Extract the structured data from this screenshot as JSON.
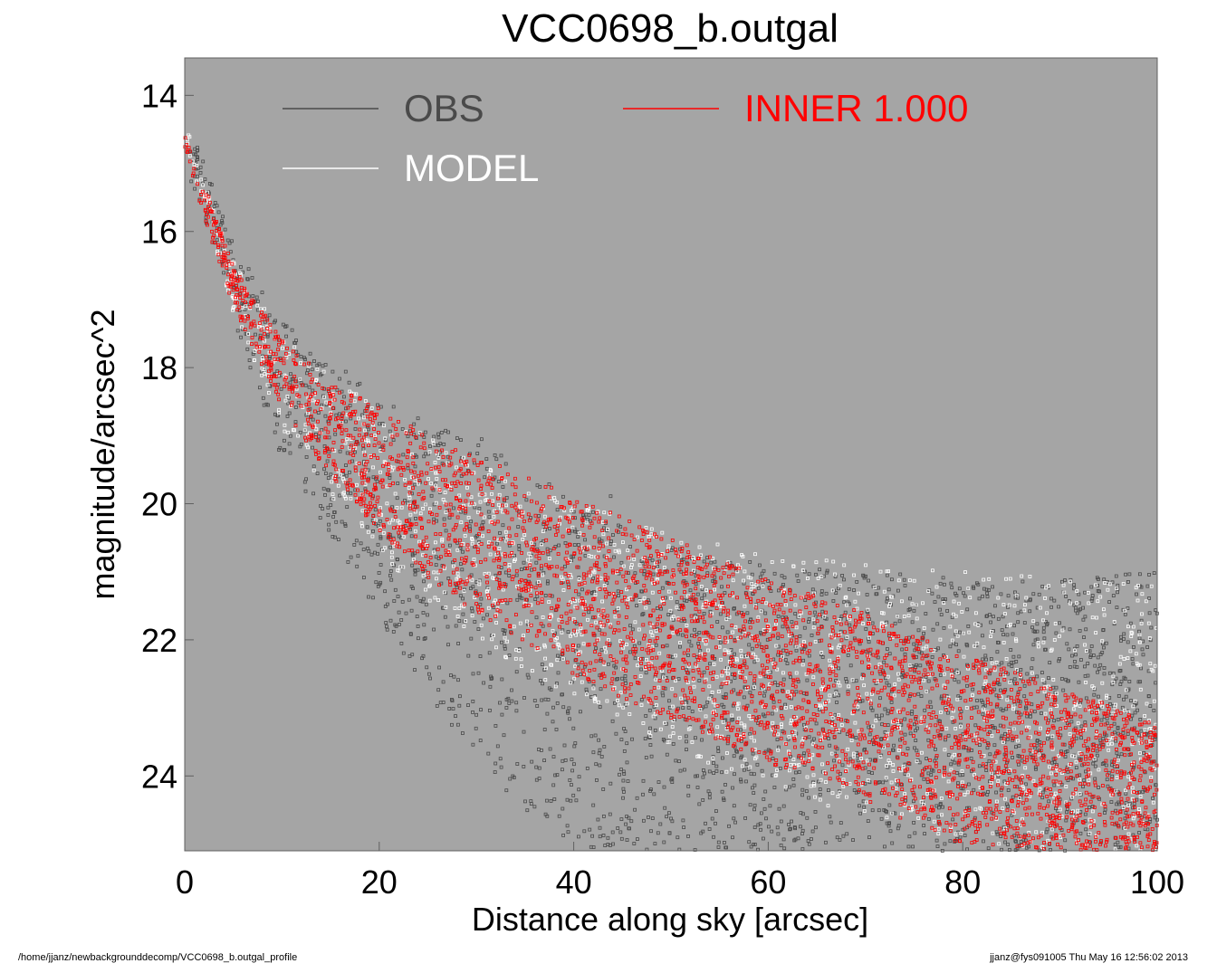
{
  "chart_data": {
    "type": "scatter",
    "title": "VCC0698_b.outgal",
    "xlabel": "Distance along sky [arcsec]",
    "ylabel": "magnitude/arcsec^2",
    "xlim": [
      0,
      100
    ],
    "ylim": [
      25.1,
      13.45
    ],
    "y_inverted": true,
    "xticks": [
      0,
      20,
      40,
      60,
      80,
      100
    ],
    "yticks": [
      14,
      16,
      18,
      20,
      22,
      24
    ],
    "background_color": "#a5a5a5",
    "grid": false,
    "legend_position": "top",
    "legend": [
      {
        "label": "OBS",
        "color": "#4a4a4a"
      },
      {
        "label": "INNER  1.000",
        "color": "#ff0000"
      },
      {
        "label": "MODEL",
        "color": "#ffffff"
      }
    ],
    "series": [
      {
        "name": "OBS",
        "color": "#4a4a4a",
        "x": [
          0,
          2,
          5,
          10,
          15,
          20,
          25,
          30,
          35,
          40,
          50,
          60,
          70,
          80,
          90,
          100
        ],
        "y_bright": [
          14.3,
          15.0,
          16.2,
          17.3,
          17.9,
          18.4,
          18.8,
          19.0,
          19.4,
          20.0,
          20.6,
          20.9,
          21.0,
          21.1,
          21.1,
          21.0
        ],
        "y_faint": [
          14.6,
          15.8,
          17.3,
          19.3,
          20.5,
          21.7,
          22.8,
          23.8,
          24.5,
          25.1,
          25.1,
          25.1,
          25.1,
          25.1,
          25.1,
          25.1
        ]
      },
      {
        "name": "MODEL",
        "color": "#ffffff",
        "x": [
          0,
          2,
          5,
          10,
          15,
          20,
          30,
          40,
          50,
          60,
          70,
          80,
          90,
          100
        ],
        "y_bright": [
          14.4,
          15.2,
          16.4,
          17.5,
          18.1,
          18.6,
          19.4,
          20.0,
          20.4,
          20.7,
          20.9,
          21.0,
          21.1,
          21.2
        ],
        "y_faint": [
          14.6,
          15.7,
          17.2,
          18.9,
          19.9,
          20.8,
          22.0,
          22.9,
          23.6,
          24.2,
          24.6,
          25.0,
          25.1,
          25.1
        ]
      },
      {
        "name": "INNER  1.000",
        "color": "#ff0000",
        "x": [
          0,
          2,
          5,
          10,
          15,
          20,
          25,
          30,
          40,
          50,
          60,
          70,
          80,
          90,
          100
        ],
        "y_bright": [
          14.6,
          15.3,
          16.5,
          17.6,
          18.2,
          18.6,
          19.0,
          19.3,
          19.9,
          20.5,
          21.1,
          21.6,
          22.2,
          22.7,
          23.2
        ],
        "y_faint": [
          14.8,
          15.8,
          17.1,
          18.6,
          19.6,
          20.4,
          21.1,
          21.6,
          22.5,
          23.2,
          23.8,
          24.4,
          25.0,
          25.1,
          25.1
        ]
      }
    ]
  },
  "footer": {
    "path": "/home/jjanz/newbackgrounddecomp/VCC0698_b.outgal_profile",
    "stamp": "jjanz@fys091005  Thu May 16 12:56:02 2013"
  }
}
